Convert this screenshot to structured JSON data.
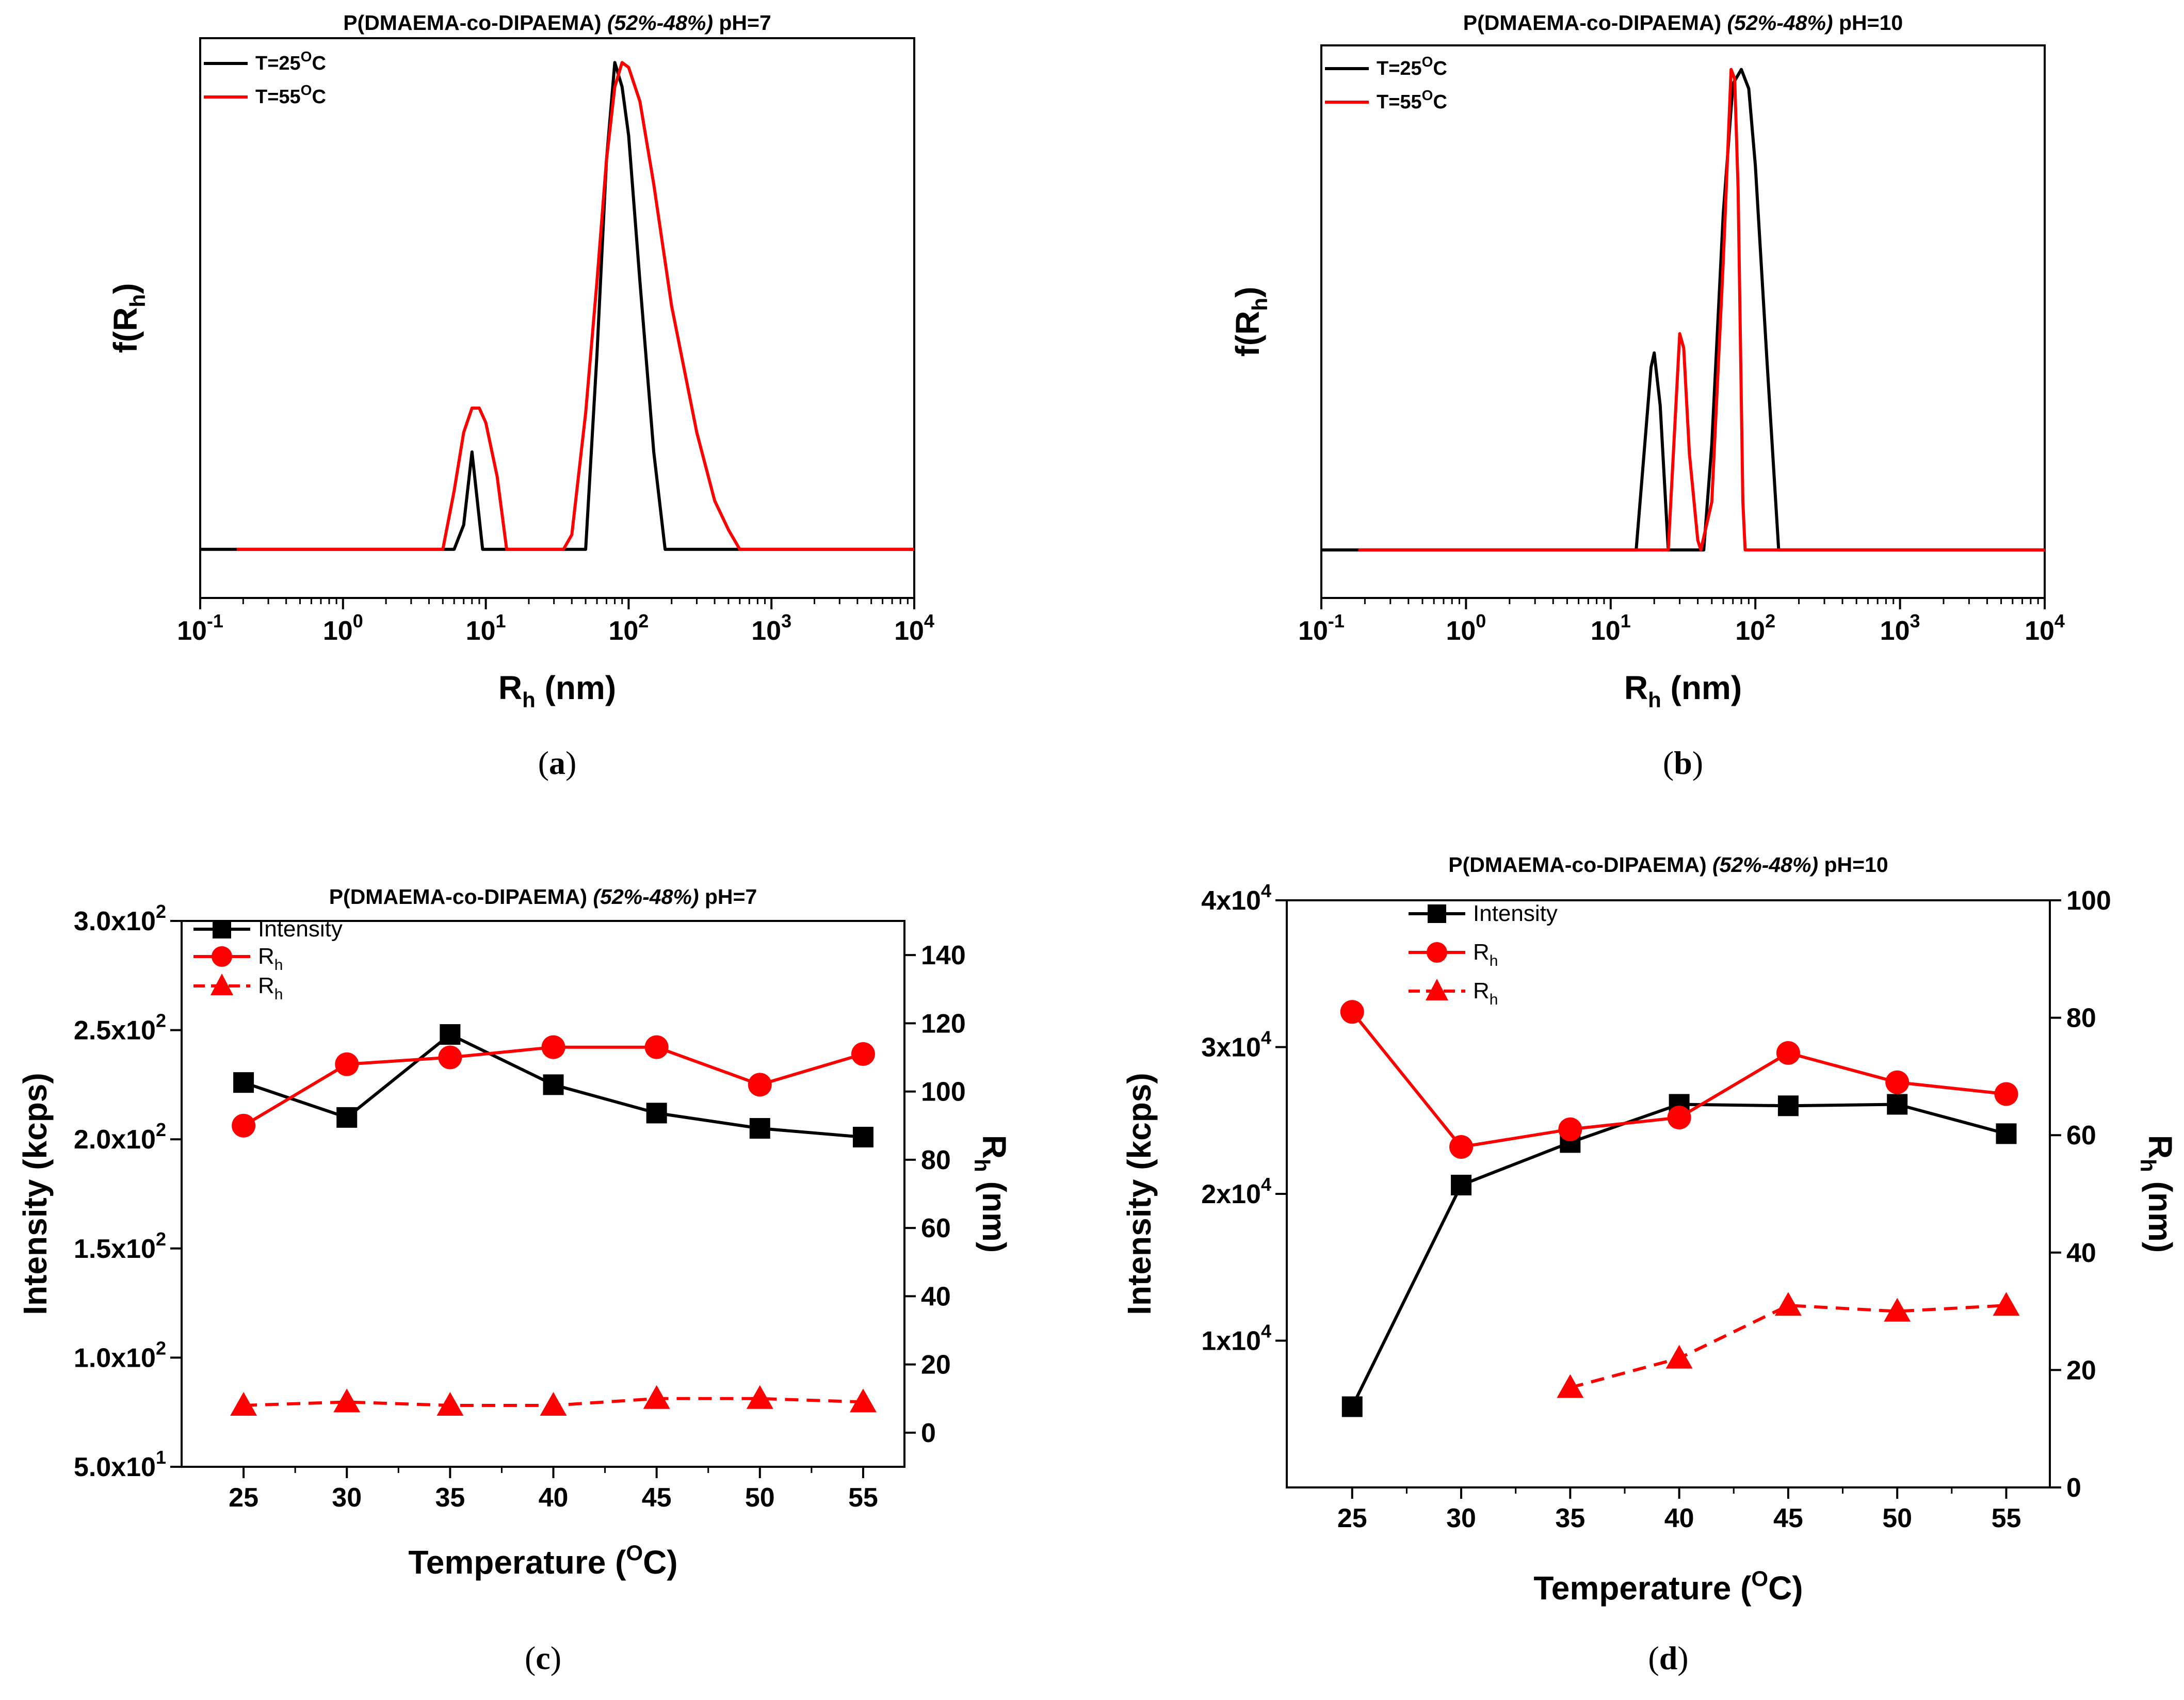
{
  "chart_data": [
    {
      "panel": "(a)",
      "type": "line",
      "title": "P(DMAEMA-co-DIPAEMA) (52%-48%) pH=7",
      "title_parts": [
        "P(DMAEMA-co-DIPAEMA)",
        "(52%-48%)",
        "pH=7"
      ],
      "xscale": "log",
      "xlim": [
        0.1,
        10000
      ],
      "x_ticks": [
        {
          "base": "10",
          "exp": "-1"
        },
        {
          "base": "10",
          "exp": "0"
        },
        {
          "base": "10",
          "exp": "1"
        },
        {
          "base": "10",
          "exp": "2"
        },
        {
          "base": "10",
          "exp": "3"
        },
        {
          "base": "10",
          "exp": "4"
        }
      ],
      "xlabel": {
        "main": "R",
        "sub": "h",
        "unit": " (nm)"
      },
      "ylabel": {
        "main": "f(R",
        "sub": "h",
        "close": ")"
      },
      "ylim": [
        -0.1,
        1.05
      ],
      "series": [
        {
          "name": "T=25°C",
          "label": {
            "pre": "T=25",
            "sup": "O",
            "post": "C"
          },
          "color": "#000000",
          "x": [
            0.1,
            6,
            7,
            8,
            9.5,
            50,
            60,
            70,
            80,
            90,
            100,
            120,
            150,
            180,
            10000
          ],
          "y": [
            0,
            0,
            0.05,
            0.2,
            0,
            0,
            0.4,
            0.8,
            1.0,
            0.95,
            0.85,
            0.55,
            0.2,
            0,
            0
          ]
        },
        {
          "name": "T=55°C",
          "label": {
            "pre": "T=55",
            "sup": "O",
            "post": "C"
          },
          "color": "#ff0000",
          "x": [
            0.18,
            5,
            6,
            7,
            8,
            9,
            10,
            12,
            14,
            35,
            40,
            50,
            60,
            70,
            80,
            90,
            100,
            120,
            150,
            200,
            300,
            400,
            500,
            600,
            10000
          ],
          "y": [
            0,
            0,
            0.12,
            0.24,
            0.29,
            0.29,
            0.26,
            0.15,
            0,
            0,
            0.03,
            0.28,
            0.55,
            0.8,
            0.95,
            1.0,
            0.99,
            0.92,
            0.75,
            0.5,
            0.24,
            0.1,
            0.04,
            0,
            0
          ]
        }
      ]
    },
    {
      "panel": "(b)",
      "type": "line",
      "title": "P(DMAEMA-co-DIPAEMA) (52%-48%) pH=10",
      "title_parts": [
        "P(DMAEMA-co-DIPAEMA)",
        "(52%-48%)",
        "pH=10"
      ],
      "xscale": "log",
      "xlim": [
        0.1,
        10000
      ],
      "x_ticks": [
        {
          "base": "10",
          "exp": "-1"
        },
        {
          "base": "10",
          "exp": "0"
        },
        {
          "base": "10",
          "exp": "1"
        },
        {
          "base": "10",
          "exp": "2"
        },
        {
          "base": "10",
          "exp": "3"
        },
        {
          "base": "10",
          "exp": "4"
        }
      ],
      "xlabel": {
        "main": "R",
        "sub": "h",
        "unit": " (nm)"
      },
      "ylabel": {
        "main": "f(R",
        "sub": "h",
        "close": ")"
      },
      "ylim": [
        -0.1,
        1.05
      ],
      "series": [
        {
          "name": "T=25°C",
          "label": {
            "pre": "T=25",
            "sup": "O",
            "post": "C"
          },
          "color": "#000000",
          "x": [
            0.1,
            15,
            17,
            19,
            20,
            22,
            25,
            44,
            50,
            60,
            70,
            80,
            90,
            100,
            120,
            145,
            10000
          ],
          "y": [
            0,
            0,
            0.2,
            0.38,
            0.41,
            0.3,
            0,
            0,
            0.22,
            0.7,
            0.97,
            1.0,
            0.96,
            0.8,
            0.4,
            0,
            0
          ]
        },
        {
          "name": "T=55°C",
          "label": {
            "pre": "T=55",
            "sup": "O",
            "post": "C"
          },
          "color": "#ff0000",
          "x": [
            0.18,
            25,
            28,
            30,
            32,
            35,
            40,
            42,
            50,
            60,
            68,
            72,
            76,
            82,
            85,
            10000
          ],
          "y": [
            0,
            0,
            0.28,
            0.45,
            0.42,
            0.2,
            0.02,
            0,
            0.1,
            0.6,
            1.0,
            0.98,
            0.75,
            0.1,
            0,
            0
          ]
        }
      ]
    },
    {
      "panel": "(c)",
      "type": "line",
      "title": "P(DMAEMA-co-DIPAEMA) (52%-48%) pH=7",
      "title_parts": [
        "P(DMAEMA-co-DIPAEMA)",
        "(52%-48%)",
        "pH=7"
      ],
      "x": [
        25,
        30,
        35,
        40,
        45,
        50,
        55
      ],
      "xlim": [
        22,
        57
      ],
      "xlabel": {
        "pre": "Temperature (",
        "sup": "O",
        "post": "C)"
      },
      "ylabel_left": "Intensity (kcps)",
      "ylabel_right": {
        "main": "R",
        "sub": "h",
        "unit": " (nm)"
      },
      "ylim_left": [
        50,
        300
      ],
      "ylim_right": [
        -10,
        150
      ],
      "y_ticks_left": [
        {
          "value": 50,
          "mant": "5.0x10",
          "exp": "1"
        },
        {
          "value": 100,
          "mant": "1.0x10",
          "exp": "2"
        },
        {
          "value": 150,
          "mant": "1.5x10",
          "exp": "2"
        },
        {
          "value": 200,
          "mant": "2.0x10",
          "exp": "2"
        },
        {
          "value": 250,
          "mant": "2.5x10",
          "exp": "2"
        },
        {
          "value": 300,
          "mant": "3.0x10",
          "exp": "2"
        }
      ],
      "y_ticks_right": [
        "0",
        "20",
        "40",
        "60",
        "80",
        "100",
        "120",
        "140"
      ],
      "series": [
        {
          "name": "Intensity",
          "axis": "left",
          "color": "#000000",
          "marker": "square",
          "dash": false,
          "values": [
            226,
            210,
            248,
            225,
            212,
            205,
            201
          ]
        },
        {
          "name": "Rh",
          "label_main": "R",
          "label_sub": "h",
          "axis": "right",
          "color": "#ff0000",
          "marker": "circle",
          "dash": false,
          "values": [
            90,
            108,
            110,
            113,
            113,
            102,
            111
          ]
        },
        {
          "name": "Rh",
          "label_main": "R",
          "label_sub": "h",
          "axis": "right",
          "color": "#ff0000",
          "marker": "triangle",
          "dash": true,
          "values": [
            8,
            9,
            8,
            8,
            10,
            10,
            9
          ]
        }
      ]
    },
    {
      "panel": "(d)",
      "type": "line",
      "title": "P(DMAEMA-co-DIPAEMA) (52%-48%) pH=10",
      "title_parts": [
        "P(DMAEMA-co-DIPAEMA)",
        "(52%-48%)",
        "pH=10"
      ],
      "x": [
        25,
        30,
        35,
        40,
        45,
        50,
        55
      ],
      "xlim": [
        22,
        57
      ],
      "xlabel": {
        "pre": "Temperature (",
        "sup": "O",
        "post": "C)"
      },
      "ylabel_left": "Intensity (kcps)",
      "ylabel_right": {
        "main": "R",
        "sub": "h",
        "unit": " (nm)"
      },
      "ylim_left": [
        0,
        40000
      ],
      "ylim_right": [
        0,
        100
      ],
      "y_ticks_left": [
        {
          "value": 10000,
          "mant": "1x10",
          "exp": "4"
        },
        {
          "value": 20000,
          "mant": "2x10",
          "exp": "4"
        },
        {
          "value": 30000,
          "mant": "3x10",
          "exp": "4"
        },
        {
          "value": 40000,
          "mant": "4x10",
          "exp": "4"
        }
      ],
      "y_ticks_right": [
        "0",
        "20",
        "40",
        "60",
        "80",
        "100"
      ],
      "series": [
        {
          "name": "Intensity",
          "axis": "left",
          "color": "#000000",
          "marker": "square",
          "dash": false,
          "values": [
            5500,
            20600,
            23500,
            26100,
            26000,
            26100,
            24100
          ]
        },
        {
          "name": "Rh",
          "label_main": "R",
          "label_sub": "h",
          "axis": "right",
          "color": "#ff0000",
          "marker": "circle",
          "dash": false,
          "values": [
            81,
            58,
            61,
            63,
            74,
            69,
            67
          ]
        },
        {
          "name": "Rh",
          "label_main": "R",
          "label_sub": "h",
          "axis": "right",
          "color": "#ff0000",
          "marker": "triangle",
          "dash": true,
          "x": [
            35,
            40,
            45,
            50,
            55
          ],
          "values": [
            17,
            22,
            31,
            30,
            31
          ]
        }
      ]
    }
  ]
}
